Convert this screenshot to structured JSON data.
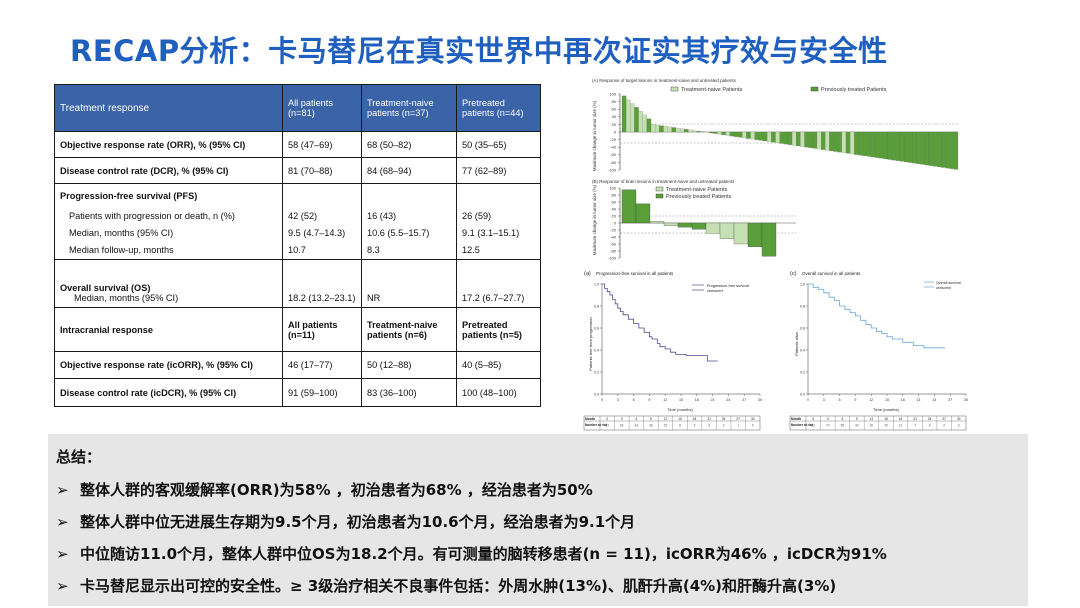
{
  "title": "RECAP分析：卡马替尼在真实世界中再次证实其疗效与安全性",
  "table": {
    "header": {
      "col1": "Treatment response",
      "col2": "All patients (n=81)",
      "col3": "Treatment-naive patients (n=37)",
      "col4": "Pretreated patients (n=44)"
    },
    "orr": {
      "label": "Objective response rate (ORR), % (95% CI)",
      "v1": "58 (47–69)",
      "v2": "68 (50–82)",
      "v3": "50 (35–65)"
    },
    "dcr": {
      "label": "Disease control rate (DCR), % (95% CI)",
      "v1": "81 (70–88)",
      "v2": "84 (68–94)",
      "v3": "77 (62–89)"
    },
    "pfs": {
      "label": "Progression-free survival (PFS)",
      "events": {
        "label": "Patients with progression or death, n (%)",
        "v1": "42 (52)",
        "v2": "16 (43)",
        "v3": "26 (59)"
      },
      "median": {
        "label": "Median, months (95% CI)",
        "v1": "9.5 (4.7–14.3)",
        "v2": "10.6 (5.5–15.7)",
        "v3": "9.1 (3.1–15.1)"
      },
      "followup": {
        "label": "Median follow-up, months",
        "v1": "10.7",
        "v2": "8.3",
        "v3": "12.5"
      }
    },
    "os": {
      "label": "Overall survival (OS)",
      "sublabel": "Median, months (95% CI)",
      "v1": "18.2 (13.2–23.1)",
      "v2": "NR",
      "v3": "17.2 (6.7–27.7)"
    },
    "ic_header": {
      "col1": "Intracranial response",
      "col2": "All patients (n=11)",
      "col3": "Treatment-naive patients (n=6)",
      "col4": "Pretreated patients (n=5)"
    },
    "icorr": {
      "label": "Objective response rate (icORR), % (95% CI)",
      "v1": "46 (17–77)",
      "v2": "50 (12–88)",
      "v3": "40 (5–85)"
    },
    "icdcr": {
      "label": "Disease control rate (icDCR), % (95% CI)",
      "v1": "91 (59–100)",
      "v2": "83 (36–100)",
      "v3": "100 (48–100)"
    }
  },
  "fig_a": {
    "caption": "(A) Response of target lesions in treatment-naive and untreated patients",
    "legend_naive": "Treatment-naive Patients",
    "legend_pre": "Previously treated Patients",
    "ylabel": "Maximum change in tumor size (%)",
    "yticks": [
      "100",
      "80",
      "60",
      "40",
      "20",
      "0",
      "-20",
      "-40",
      "-60",
      "-80",
      "-100"
    ]
  },
  "fig_b": {
    "caption": "(B) Response of brain lesions in treatment-naive and untreated patients",
    "legend_naive": "Treatment-naive Patients",
    "legend_pre": "Previously treated Patients",
    "ylabel": "Maximum change in tumor size (%)",
    "yticks": [
      "100",
      "80",
      "60",
      "40",
      "20",
      "0",
      "-20",
      "-40",
      "-60",
      "-80",
      "-100"
    ]
  },
  "fig_pfs": {
    "panel": "(a)",
    "caption": "Progression-free survival in all patients",
    "legend1": "Progression-free survival",
    "legend2": "censored",
    "ylabel": "Patients free from progression",
    "xlabel": "Time (months)",
    "yticks": [
      "1.0",
      "0.8",
      "0.6",
      "0.4",
      "0.2",
      "0.0"
    ],
    "xticks": [
      "0",
      "3",
      "6",
      "9",
      "12",
      "15",
      "18",
      "21",
      "24",
      "27",
      "30"
    ],
    "risk_label1": "Month",
    "risk_label2": "Number at risk",
    "risk_months": [
      "0",
      "3",
      "6",
      "9",
      "12",
      "15",
      "18",
      "21",
      "24",
      "27",
      "30"
    ],
    "risk_numbers": [
      "81",
      "62",
      "43",
      "28",
      "15",
      "8",
      "5",
      "3",
      "2",
      "1",
      "0"
    ]
  },
  "fig_os": {
    "panel": "(c)",
    "caption": "Overall survival in all patients",
    "legend1": "Overall survival",
    "legend2": "censored",
    "ylabel": "Patients alive",
    "xlabel": "Time (months)",
    "yticks": [
      "1.0",
      "0.8",
      "0.6",
      "0.4",
      "0.2",
      "0.0"
    ],
    "xticks": [
      "0",
      "3",
      "6",
      "9",
      "12",
      "15",
      "18",
      "21",
      "24",
      "27",
      "30"
    ],
    "risk_label1": "Month",
    "risk_label2": "Number at risk",
    "risk_months": [
      "0",
      "3",
      "6",
      "9",
      "12",
      "15",
      "18",
      "21",
      "24",
      "27",
      "30"
    ],
    "risk_numbers": [
      "81",
      "70",
      "55",
      "42",
      "30",
      "20",
      "12",
      "7",
      "4",
      "2",
      "0"
    ]
  },
  "summary": {
    "title": "总结：",
    "bullet_glyph": "➢",
    "bullets": [
      "整体人群的客观缓解率(ORR)为58% ，初治患者为68% ，经治患者为50%",
      "整体人群中位无进展生存期为9.5个月，初治患者为10.6个月，经治患者为9.1个月",
      "中位随访11.0个月，整体人群中位OS为18.2个月。有可测量的脑转移患者(n  = 11)，icORR为46% ，icDCR为91%",
      "卡马替尼显示出可控的安全性。≥ 3级治疗相关不良事件包括：外周水肿(13%)、肌酐升高(4%)和肝酶升高(3%)"
    ]
  },
  "colors": {
    "title": "#1f5fbf",
    "header_bg": "#3b64a8",
    "bar_naive": "#c6e0b4",
    "bar_pre": "#5a9e3a",
    "km_pfs": "#4a4f8c",
    "km_os": "#6aa6d9",
    "summary_bg": "#e6e6e6"
  }
}
